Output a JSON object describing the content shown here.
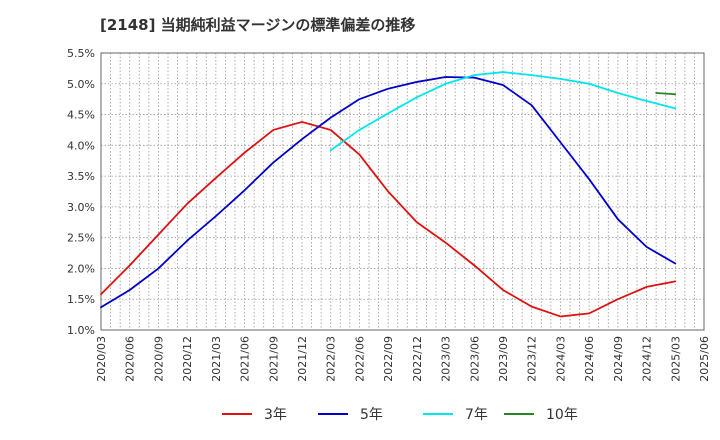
{
  "chart_data": {
    "type": "line",
    "title": "[2148]  当期純利益マージンの標準偏差の推移",
    "xlabel": "",
    "ylabel": "",
    "ylim": [
      1.0,
      5.5
    ],
    "yticks": [
      "1.0%",
      "1.5%",
      "2.0%",
      "2.5%",
      "3.0%",
      "3.5%",
      "4.0%",
      "4.5%",
      "5.0%",
      "5.5%"
    ],
    "xticks": [
      "2020/03",
      "2020/06",
      "2020/09",
      "2020/12",
      "2021/03",
      "2021/06",
      "2021/09",
      "2021/12",
      "2022/03",
      "2022/06",
      "2022/09",
      "2022/12",
      "2023/03",
      "2023/06",
      "2023/09",
      "2023/12",
      "2024/03",
      "2024/06",
      "2024/09",
      "2024/12",
      "2025/03",
      "2025/06"
    ],
    "grid": true,
    "legend": "bottom",
    "series": [
      {
        "name": "3年",
        "color": "#dd1111",
        "points": [
          [
            "2020/03",
            1.58
          ],
          [
            "2020/06",
            2.05
          ],
          [
            "2020/09",
            2.55
          ],
          [
            "2020/12",
            3.05
          ],
          [
            "2021/03",
            3.47
          ],
          [
            "2021/06",
            3.88
          ],
          [
            "2021/09",
            4.25
          ],
          [
            "2021/12",
            4.38
          ],
          [
            "2022/03",
            4.25
          ],
          [
            "2022/06",
            3.85
          ],
          [
            "2022/09",
            3.25
          ],
          [
            "2022/12",
            2.75
          ],
          [
            "2023/03",
            2.42
          ],
          [
            "2023/06",
            2.05
          ],
          [
            "2023/09",
            1.65
          ],
          [
            "2023/12",
            1.38
          ],
          [
            "2024/03",
            1.22
          ],
          [
            "2024/06",
            1.27
          ],
          [
            "2024/09",
            1.5
          ],
          [
            "2024/12",
            1.7
          ],
          [
            "2025/03",
            1.79
          ]
        ]
      },
      {
        "name": "5年",
        "color": "#0000cc",
        "points": [
          [
            "2020/03",
            1.37
          ],
          [
            "2020/06",
            1.65
          ],
          [
            "2020/09",
            2.0
          ],
          [
            "2020/12",
            2.45
          ],
          [
            "2021/03",
            2.85
          ],
          [
            "2021/06",
            3.27
          ],
          [
            "2021/09",
            3.72
          ],
          [
            "2021/12",
            4.1
          ],
          [
            "2022/03",
            4.45
          ],
          [
            "2022/06",
            4.75
          ],
          [
            "2022/09",
            4.92
          ],
          [
            "2022/12",
            5.03
          ],
          [
            "2023/03",
            5.11
          ],
          [
            "2023/06",
            5.1
          ],
          [
            "2023/09",
            4.98
          ],
          [
            "2023/12",
            4.65
          ],
          [
            "2024/03",
            4.05
          ],
          [
            "2024/06",
            3.45
          ],
          [
            "2024/09",
            2.8
          ],
          [
            "2024/12",
            2.35
          ],
          [
            "2025/03",
            2.08
          ]
        ]
      },
      {
        "name": "7年",
        "color": "#00e5ee",
        "points": [
          [
            "2022/03",
            3.92
          ],
          [
            "2022/06",
            4.25
          ],
          [
            "2022/09",
            4.52
          ],
          [
            "2022/12",
            4.78
          ],
          [
            "2023/03",
            5.0
          ],
          [
            "2023/06",
            5.14
          ],
          [
            "2023/09",
            5.19
          ],
          [
            "2023/12",
            5.14
          ],
          [
            "2024/03",
            5.08
          ],
          [
            "2024/06",
            5.0
          ],
          [
            "2024/09",
            4.85
          ],
          [
            "2024/12",
            4.72
          ],
          [
            "2025/03",
            4.6
          ]
        ]
      },
      {
        "name": "10年",
        "color": "#228822",
        "points": [
          [
            "2025/01",
            4.85
          ],
          [
            "2025/03",
            4.83
          ]
        ]
      }
    ]
  }
}
